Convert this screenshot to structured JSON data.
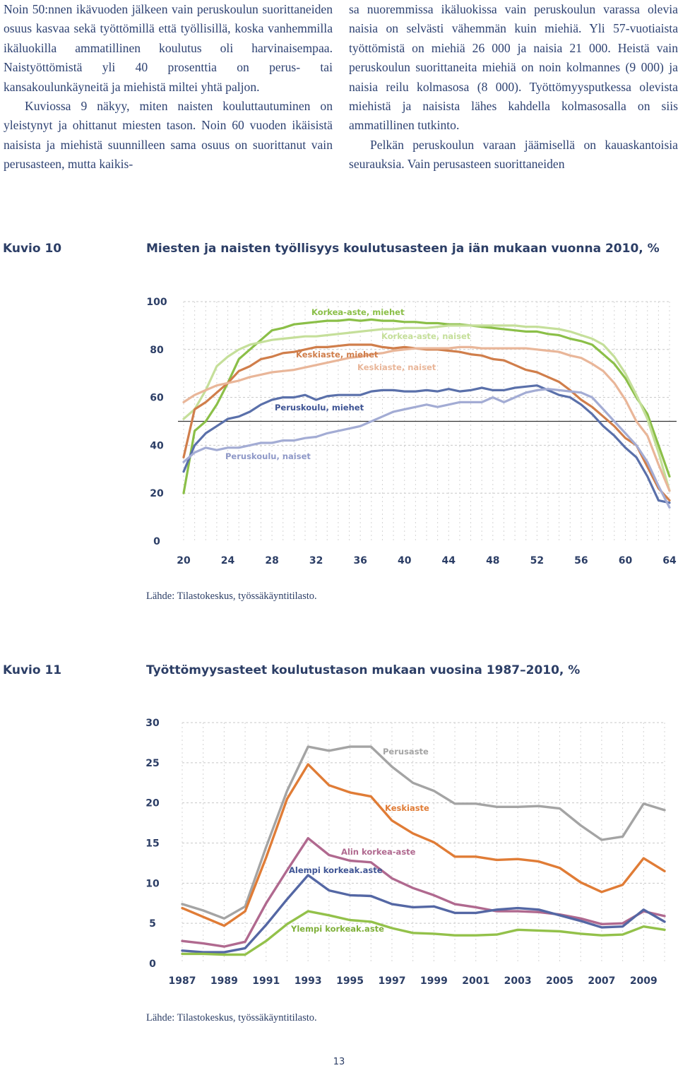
{
  "text": {
    "left_p1": "Noin 50:nnen ikävuoden jälkeen vain peruskoulun suorittaneiden osuus kasvaa sekä työttömillä että työllisillä, koska vanhemmilla ikäluokilla ammatillinen koulutus oli harvinaisempaa. Naistyöttömistä yli 40 prosenttia on perus- tai kansakoulunkäyneitä ja miehistä miltei yhtä paljon.",
    "left_p2": "Kuviossa 9 näkyy, miten naisten kouluttautuminen on yleistynyt ja ohittanut miesten tason. Noin 60 vuoden ikäisistä naisista ja miehistä suunnilleen sama osuus on suorittanut vain perusasteen, mutta kaikis-",
    "right_p1": "sa nuoremmissa ikäluokissa vain peruskoulun varassa olevia naisia on selvästi vähemmän kuin miehiä. Yli 57-vuotiaista työttömistä on miehiä 26 000 ja naisia 21 000. Heistä vain peruskoulun suorittaneita miehiä on noin kolmannes (9 000) ja naisia reilu kolmasosa (8 000). Työttömyysputkessa olevista miehistä ja naisista lähes kahdella kolmasosalla on siis ammatillinen tutkinto.",
    "right_p2": "Pelkän peruskoulun varaan jäämisellä on kauaskantoisia seurauksia. Vain perusasteen suorittaneiden"
  },
  "figure10": {
    "label": "Kuvio 10",
    "title": "Miesten ja naisten työllisyys koulutusasteen ja iän mukaan vuonna 2010, %",
    "source": "Lähde: Tilastokeskus, työssäkäyntitilasto."
  },
  "figure11": {
    "label": "Kuvio 11",
    "title": "Työttömyysasteet koulutustason mukaan vuosina 1987–2010, %",
    "source": "Lähde: Tilastokeskus, työssäkäyntitilasto."
  },
  "page_number": "13",
  "chart_data": [
    {
      "type": "line",
      "x": [
        20,
        21,
        22,
        23,
        24,
        25,
        26,
        27,
        28,
        29,
        30,
        31,
        32,
        33,
        34,
        35,
        36,
        37,
        38,
        39,
        40,
        41,
        42,
        43,
        44,
        45,
        46,
        47,
        48,
        49,
        50,
        51,
        52,
        53,
        54,
        55,
        56,
        57,
        58,
        59,
        60,
        61,
        62,
        63,
        64
      ],
      "xticks": [
        20,
        24,
        28,
        32,
        36,
        40,
        44,
        48,
        52,
        56,
        60,
        64
      ],
      "yticks": [
        0,
        20,
        40,
        60,
        80,
        100
      ],
      "ylim": [
        0,
        100
      ],
      "reference_line": 50,
      "grid": "dashed vertical and horizontal",
      "series": [
        {
          "name": "Korkea-aste, miehet",
          "color": "#8bbf48",
          "values": [
            20,
            46,
            50,
            57,
            66,
            76,
            80,
            84,
            88,
            89,
            90.5,
            91,
            91.5,
            92,
            92,
            92.5,
            92,
            92.5,
            92,
            92,
            91.5,
            91.5,
            91,
            91,
            90.5,
            90.5,
            90,
            89.5,
            89,
            88.5,
            88,
            87.5,
            87.5,
            86.5,
            86,
            84.5,
            83.5,
            82,
            78,
            74,
            68,
            60,
            53,
            40,
            27
          ]
        },
        {
          "name": "Korkea-aste, naiset",
          "color": "#c5df9a",
          "values": [
            51,
            55,
            63,
            73,
            77,
            80,
            82,
            83,
            84,
            84.5,
            85,
            85.5,
            85.5,
            86,
            86.5,
            87,
            87.5,
            88,
            88.5,
            88.5,
            89,
            89,
            89,
            89.5,
            90,
            90,
            90,
            90,
            90,
            90,
            90,
            89.5,
            89.5,
            89,
            88.5,
            87.5,
            86,
            84.5,
            82,
            77,
            70,
            61,
            51,
            37,
            21
          ]
        },
        {
          "name": "Keskiaste, miehet",
          "color": "#d07e4b",
          "values": [
            35,
            55,
            58,
            62,
            66,
            71,
            73,
            76,
            77,
            78.5,
            79,
            80,
            81,
            81,
            81.5,
            82,
            82,
            82,
            81,
            80.5,
            81,
            80.5,
            80,
            80,
            79.5,
            79,
            78,
            77.5,
            76,
            75.5,
            73.5,
            71.5,
            70.5,
            68.5,
            66.5,
            63,
            59,
            56,
            52,
            48,
            43,
            40,
            31,
            22,
            17
          ]
        },
        {
          "name": "Keskiaste, naiset",
          "color": "#e9b699",
          "values": [
            58,
            61,
            63,
            65,
            66,
            67,
            68.5,
            69.5,
            70.5,
            71,
            71.5,
            72.5,
            73.5,
            74.5,
            75.5,
            76.5,
            77,
            78,
            78.5,
            79.5,
            80,
            80.5,
            80.5,
            80.5,
            80.5,
            81,
            81,
            80.5,
            80.5,
            80.5,
            80.5,
            80.5,
            80,
            79.5,
            79,
            77.5,
            76.5,
            74,
            71,
            66,
            59,
            50,
            44,
            32,
            21
          ]
        },
        {
          "name": "Peruskoulu, miehet",
          "color": "#5a70aa",
          "values": [
            29,
            40,
            45,
            48,
            51,
            52,
            54,
            57,
            59,
            60,
            60,
            61,
            59,
            60.5,
            61,
            61,
            61,
            62.5,
            63,
            63,
            62.5,
            62.5,
            63,
            62.5,
            63.5,
            62.5,
            63,
            64,
            63,
            63,
            64,
            64.5,
            65,
            63,
            61,
            60,
            57,
            53,
            48,
            44,
            39,
            35,
            27,
            17,
            16
          ]
        },
        {
          "name": "Peruskoulu, naiset",
          "color": "#a3acd4",
          "values": [
            33,
            37,
            39,
            38,
            39,
            39,
            40,
            41,
            41,
            42,
            42,
            43,
            43.5,
            45,
            46,
            47,
            48,
            50,
            52,
            54,
            55,
            56,
            57,
            56,
            57,
            58,
            58,
            58,
            60,
            58,
            60,
            62,
            63,
            63.5,
            63,
            62.5,
            62,
            60,
            55,
            50,
            45,
            40,
            33,
            23,
            14
          ]
        }
      ]
    },
    {
      "type": "line",
      "x": [
        1987,
        1988,
        1989,
        1990,
        1991,
        1992,
        1993,
        1994,
        1995,
        1996,
        1997,
        1998,
        1999,
        2000,
        2001,
        2002,
        2003,
        2004,
        2005,
        2006,
        2007,
        2008,
        2009,
        2010
      ],
      "xticks": [
        1987,
        1989,
        1991,
        1993,
        1995,
        1997,
        1999,
        2001,
        2003,
        2005,
        2007,
        2009
      ],
      "yticks": [
        0,
        5,
        10,
        15,
        20,
        25,
        30
      ],
      "ylim": [
        0,
        30
      ],
      "grid": "dashed vertical and horizontal",
      "series": [
        {
          "name": "Perusaste",
          "color": "#a4a4a4",
          "values": [
            7.4,
            6.6,
            5.6,
            7.1,
            14.5,
            21.5,
            27.0,
            26.5,
            27.0,
            27.0,
            24.5,
            22.5,
            21.5,
            19.9,
            19.9,
            19.5,
            19.5,
            19.6,
            19.3,
            17.2,
            15.4,
            15.8,
            19.9,
            19.1
          ]
        },
        {
          "name": "Keskiaste",
          "color": "#e07c36",
          "values": [
            6.9,
            5.8,
            4.7,
            6.5,
            13.2,
            20.5,
            24.8,
            22.2,
            21.3,
            20.8,
            17.8,
            16.2,
            15.1,
            13.3,
            13.3,
            12.9,
            13.0,
            12.7,
            11.9,
            10.1,
            8.9,
            9.8,
            13.1,
            11.5
          ]
        },
        {
          "name": "Alin korkea-aste",
          "color": "#b0698f",
          "values": [
            2.8,
            2.5,
            2.1,
            2.7,
            7.5,
            11.6,
            15.6,
            13.5,
            12.8,
            12.6,
            10.6,
            9.4,
            8.5,
            7.4,
            7.0,
            6.5,
            6.5,
            6.4,
            6.1,
            5.6,
            4.9,
            5.0,
            6.5,
            5.9
          ]
        },
        {
          "name": "Alempi korkeak.aste",
          "color": "#5467a4",
          "values": [
            1.6,
            1.4,
            1.4,
            1.9,
            4.8,
            8.0,
            11.0,
            9.1,
            8.5,
            8.4,
            7.4,
            7.0,
            7.1,
            6.3,
            6.3,
            6.7,
            6.9,
            6.7,
            6.0,
            5.3,
            4.5,
            4.6,
            6.7,
            5.2
          ]
        },
        {
          "name": "Ylempi korkeak.aste",
          "color": "#93c14a",
          "values": [
            1.2,
            1.2,
            1.1,
            1.1,
            2.8,
            4.9,
            6.5,
            6.0,
            5.4,
            5.2,
            4.4,
            3.8,
            3.7,
            3.5,
            3.5,
            3.6,
            4.2,
            4.1,
            4.0,
            3.7,
            3.5,
            3.6,
            4.6,
            4.2
          ]
        }
      ]
    }
  ]
}
